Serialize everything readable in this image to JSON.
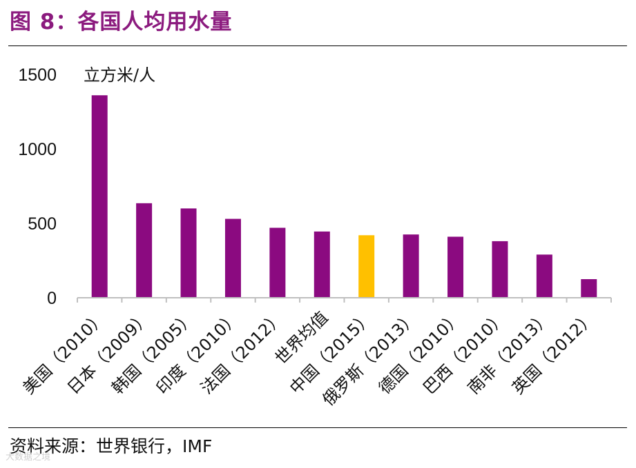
{
  "header": {
    "title": "图 8：各国人均用水量"
  },
  "footer": {
    "source": "资料来源：世界银行，IMF",
    "watermark": "大数据之境"
  },
  "colors": {
    "title": "#8b1a7e",
    "bar_default": "#8b0a80",
    "bar_highlight": "#ffc000",
    "axis": "#bfbfbf"
  },
  "chart_data": {
    "type": "bar",
    "title": "各国人均用水量",
    "xlabel": "",
    "ylabel": "立方米/人",
    "ylim": [
      0,
      1500
    ],
    "yticks": [
      0,
      500,
      1000,
      1500
    ],
    "grid": false,
    "categories": [
      "美国（2010）",
      "日本（2009）",
      "韩国（2005）",
      "印度（2010）",
      "法国（2012）",
      "世界均值",
      "中国（2015）",
      "俄罗斯（2013）",
      "德国（2010）",
      "巴西（2010）",
      "南非（2013）",
      "英国（2012）"
    ],
    "values": [
      1360,
      635,
      600,
      530,
      470,
      445,
      420,
      425,
      410,
      380,
      290,
      125
    ],
    "highlight": [
      "中国（2015）"
    ]
  }
}
